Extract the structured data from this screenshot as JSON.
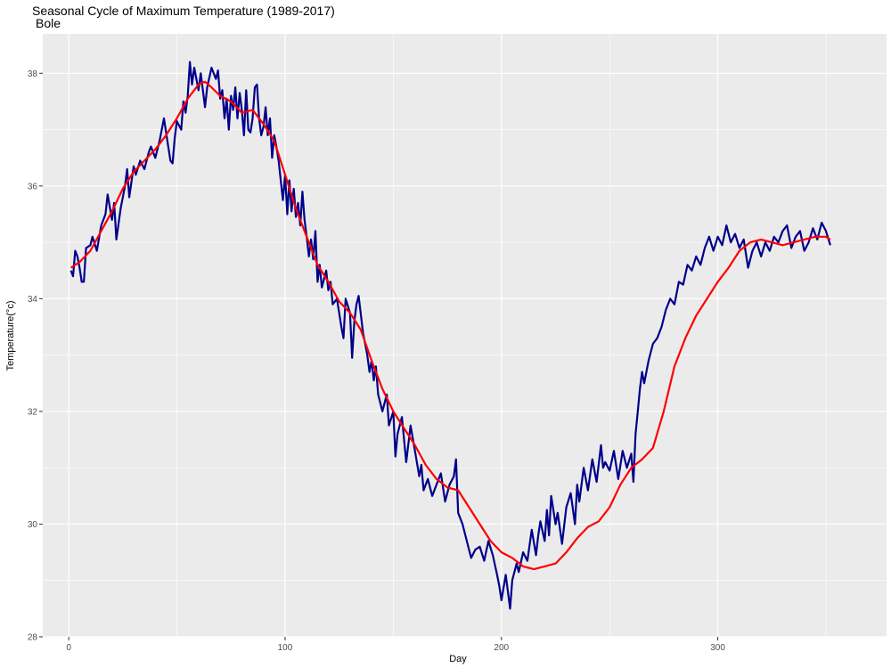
{
  "chart_data": {
    "type": "line",
    "title": "Seasonal Cycle of Maximum Temperature (1989-2017)",
    "subtitle": "Bole",
    "xlabel": "Day",
    "ylabel": "Temperature(°c)",
    "xlim": [
      -12,
      378
    ],
    "ylim": [
      28,
      38.7
    ],
    "x_ticks": [
      0,
      100,
      200,
      300
    ],
    "y_ticks": [
      28,
      30,
      32,
      34,
      36,
      38
    ],
    "grid": true,
    "legend": "none",
    "colors": {
      "panel_bg": "#ebebeb",
      "grid": "#ffffff",
      "observed": "#00008b",
      "smooth": "#ff0000"
    },
    "series": [
      {
        "values_anchor": [
          [
            1,
            34.5
          ],
          [
            2,
            34.4
          ],
          [
            3,
            34.85
          ],
          [
            4,
            34.75
          ],
          [
            5,
            34.55
          ],
          [
            6,
            34.3
          ],
          [
            7,
            34.3
          ],
          [
            8,
            34.9
          ],
          [
            10,
            34.95
          ],
          [
            11,
            35.1
          ],
          [
            13,
            34.85
          ],
          [
            15,
            35.3
          ],
          [
            17,
            35.5
          ],
          [
            18,
            35.85
          ],
          [
            20,
            35.4
          ],
          [
            21,
            35.7
          ],
          [
            22,
            35.05
          ],
          [
            24,
            35.6
          ],
          [
            26,
            36.0
          ],
          [
            27,
            36.3
          ],
          [
            28,
            35.8
          ],
          [
            30,
            36.35
          ],
          [
            31,
            36.2
          ],
          [
            33,
            36.45
          ],
          [
            35,
            36.3
          ],
          [
            37,
            36.6
          ],
          [
            38,
            36.7
          ],
          [
            40,
            36.5
          ],
          [
            42,
            36.8
          ],
          [
            44,
            37.2
          ],
          [
            46,
            36.7
          ],
          [
            47,
            36.45
          ],
          [
            48,
            36.4
          ],
          [
            49,
            36.85
          ],
          [
            50,
            37.15
          ],
          [
            52,
            37.0
          ],
          [
            53,
            37.5
          ],
          [
            54,
            37.3
          ],
          [
            55,
            37.6
          ],
          [
            56,
            38.2
          ],
          [
            57,
            37.8
          ],
          [
            58,
            38.1
          ],
          [
            60,
            37.7
          ],
          [
            61,
            38.0
          ],
          [
            63,
            37.4
          ],
          [
            64,
            37.75
          ],
          [
            66,
            38.1
          ],
          [
            68,
            37.9
          ],
          [
            69,
            38.05
          ],
          [
            70,
            37.55
          ],
          [
            71,
            37.7
          ],
          [
            72,
            37.2
          ],
          [
            73,
            37.55
          ],
          [
            74,
            37.0
          ],
          [
            75,
            37.6
          ],
          [
            76,
            37.35
          ],
          [
            77,
            37.75
          ],
          [
            78,
            37.2
          ],
          [
            79,
            37.65
          ],
          [
            80,
            37.35
          ],
          [
            81,
            36.9
          ],
          [
            82,
            37.7
          ],
          [
            83,
            37.0
          ],
          [
            84,
            36.95
          ],
          [
            85,
            37.2
          ],
          [
            86,
            37.75
          ],
          [
            87,
            37.8
          ],
          [
            88,
            37.2
          ],
          [
            89,
            36.9
          ],
          [
            90,
            37.05
          ],
          [
            91,
            37.4
          ],
          [
            92,
            36.9
          ],
          [
            93,
            37.2
          ],
          [
            94,
            36.5
          ],
          [
            95,
            36.9
          ],
          [
            96,
            36.7
          ],
          [
            97,
            36.45
          ],
          [
            99,
            35.75
          ],
          [
            100,
            36.2
          ],
          [
            101,
            35.5
          ],
          [
            102,
            36.1
          ],
          [
            103,
            35.55
          ],
          [
            104,
            35.95
          ],
          [
            105,
            35.45
          ],
          [
            106,
            35.7
          ],
          [
            107,
            35.3
          ],
          [
            108,
            35.9
          ],
          [
            109,
            35.4
          ],
          [
            110,
            35.1
          ],
          [
            111,
            34.75
          ],
          [
            112,
            35.05
          ],
          [
            113,
            34.7
          ],
          [
            114,
            35.2
          ],
          [
            115,
            34.3
          ],
          [
            116,
            34.6
          ],
          [
            117,
            34.2
          ],
          [
            118,
            34.35
          ],
          [
            119,
            34.5
          ],
          [
            120,
            34.15
          ],
          [
            121,
            34.3
          ],
          [
            122,
            33.9
          ],
          [
            124,
            34.0
          ],
          [
            126,
            33.5
          ],
          [
            127,
            33.3
          ],
          [
            128,
            34.0
          ],
          [
            130,
            33.75
          ],
          [
            131,
            32.95
          ],
          [
            132,
            33.6
          ],
          [
            133,
            33.9
          ],
          [
            134,
            34.05
          ],
          [
            136,
            33.4
          ],
          [
            138,
            33.0
          ],
          [
            139,
            32.7
          ],
          [
            140,
            32.9
          ],
          [
            141,
            32.55
          ],
          [
            142,
            32.8
          ],
          [
            143,
            32.3
          ],
          [
            145,
            32.0
          ],
          [
            147,
            32.3
          ],
          [
            148,
            31.75
          ],
          [
            150,
            32.0
          ],
          [
            151,
            31.2
          ],
          [
            152,
            31.6
          ],
          [
            154,
            31.9
          ],
          [
            156,
            31.1
          ],
          [
            158,
            31.75
          ],
          [
            160,
            31.3
          ],
          [
            162,
            30.85
          ],
          [
            163,
            31.05
          ],
          [
            164,
            30.6
          ],
          [
            166,
            30.8
          ],
          [
            168,
            30.5
          ],
          [
            170,
            30.7
          ],
          [
            172,
            30.9
          ],
          [
            174,
            30.4
          ],
          [
            176,
            30.7
          ],
          [
            178,
            30.85
          ],
          [
            179,
            31.15
          ],
          [
            180,
            30.2
          ],
          [
            182,
            30.0
          ],
          [
            184,
            29.7
          ],
          [
            186,
            29.4
          ],
          [
            188,
            29.55
          ],
          [
            190,
            29.6
          ],
          [
            192,
            29.35
          ],
          [
            194,
            29.7
          ],
          [
            196,
            29.45
          ],
          [
            198,
            29.1
          ],
          [
            199,
            28.9
          ],
          [
            200,
            28.65
          ],
          [
            202,
            29.1
          ],
          [
            204,
            28.5
          ],
          [
            205,
            29.0
          ],
          [
            207,
            29.3
          ],
          [
            208,
            29.15
          ],
          [
            210,
            29.5
          ],
          [
            212,
            29.35
          ],
          [
            214,
            29.9
          ],
          [
            216,
            29.45
          ],
          [
            217,
            29.8
          ],
          [
            218,
            30.05
          ],
          [
            220,
            29.7
          ],
          [
            221,
            30.25
          ],
          [
            222,
            29.8
          ],
          [
            223,
            30.5
          ],
          [
            225,
            30.0
          ],
          [
            226,
            30.2
          ],
          [
            228,
            29.65
          ],
          [
            230,
            30.3
          ],
          [
            232,
            30.55
          ],
          [
            234,
            30.0
          ],
          [
            235,
            30.7
          ],
          [
            236,
            30.4
          ],
          [
            238,
            31.0
          ],
          [
            240,
            30.6
          ],
          [
            242,
            31.15
          ],
          [
            244,
            30.75
          ],
          [
            246,
            31.4
          ],
          [
            247,
            31.0
          ],
          [
            248,
            31.1
          ],
          [
            250,
            30.95
          ],
          [
            252,
            31.3
          ],
          [
            254,
            30.8
          ],
          [
            256,
            31.3
          ],
          [
            258,
            31.0
          ],
          [
            260,
            31.25
          ],
          [
            261,
            30.75
          ],
          [
            262,
            31.6
          ],
          [
            263,
            32.0
          ],
          [
            264,
            32.4
          ],
          [
            265,
            32.7
          ],
          [
            266,
            32.5
          ],
          [
            268,
            32.9
          ],
          [
            270,
            33.2
          ],
          [
            272,
            33.3
          ],
          [
            274,
            33.5
          ],
          [
            276,
            33.8
          ],
          [
            278,
            34.0
          ],
          [
            280,
            33.9
          ],
          [
            282,
            34.3
          ],
          [
            284,
            34.25
          ],
          [
            286,
            34.6
          ],
          [
            288,
            34.5
          ],
          [
            290,
            34.75
          ],
          [
            292,
            34.6
          ],
          [
            294,
            34.9
          ],
          [
            296,
            35.1
          ],
          [
            298,
            34.85
          ],
          [
            300,
            35.1
          ],
          [
            302,
            34.95
          ],
          [
            304,
            35.3
          ],
          [
            306,
            35.0
          ],
          [
            308,
            35.15
          ],
          [
            310,
            34.9
          ],
          [
            312,
            35.05
          ],
          [
            314,
            34.55
          ],
          [
            316,
            34.85
          ],
          [
            318,
            35.0
          ],
          [
            320,
            34.75
          ],
          [
            322,
            35.0
          ],
          [
            324,
            34.85
          ],
          [
            326,
            35.1
          ],
          [
            328,
            35.0
          ],
          [
            330,
            35.2
          ],
          [
            332,
            35.3
          ],
          [
            334,
            34.9
          ],
          [
            336,
            35.1
          ],
          [
            338,
            35.2
          ],
          [
            340,
            34.85
          ],
          [
            342,
            35.0
          ],
          [
            344,
            35.25
          ],
          [
            346,
            35.05
          ],
          [
            348,
            35.35
          ],
          [
            350,
            35.2
          ],
          [
            352,
            34.95
          ]
        ]
      },
      {
        "values_anchor": [
          [
            1,
            34.55
          ],
          [
            5,
            34.65
          ],
          [
            10,
            34.85
          ],
          [
            15,
            35.2
          ],
          [
            20,
            35.55
          ],
          [
            25,
            35.95
          ],
          [
            30,
            36.25
          ],
          [
            35,
            36.45
          ],
          [
            40,
            36.65
          ],
          [
            45,
            36.9
          ],
          [
            50,
            37.2
          ],
          [
            55,
            37.55
          ],
          [
            60,
            37.8
          ],
          [
            63,
            37.85
          ],
          [
            66,
            37.75
          ],
          [
            70,
            37.6
          ],
          [
            75,
            37.5
          ],
          [
            80,
            37.3
          ],
          [
            85,
            37.35
          ],
          [
            90,
            37.1
          ],
          [
            95,
            36.8
          ],
          [
            100,
            36.2
          ],
          [
            105,
            35.6
          ],
          [
            110,
            35.1
          ],
          [
            115,
            34.6
          ],
          [
            120,
            34.3
          ],
          [
            125,
            33.95
          ],
          [
            130,
            33.75
          ],
          [
            135,
            33.45
          ],
          [
            140,
            32.9
          ],
          [
            145,
            32.4
          ],
          [
            150,
            32.0
          ],
          [
            155,
            31.7
          ],
          [
            160,
            31.4
          ],
          [
            165,
            31.05
          ],
          [
            170,
            30.8
          ],
          [
            175,
            30.65
          ],
          [
            180,
            30.6
          ],
          [
            185,
            30.3
          ],
          [
            190,
            30.0
          ],
          [
            195,
            29.7
          ],
          [
            200,
            29.5
          ],
          [
            205,
            29.4
          ],
          [
            210,
            29.25
          ],
          [
            215,
            29.2
          ],
          [
            220,
            29.25
          ],
          [
            225,
            29.3
          ],
          [
            230,
            29.5
          ],
          [
            235,
            29.75
          ],
          [
            240,
            29.95
          ],
          [
            245,
            30.05
          ],
          [
            250,
            30.3
          ],
          [
            255,
            30.7
          ],
          [
            260,
            31.0
          ],
          [
            265,
            31.15
          ],
          [
            270,
            31.35
          ],
          [
            275,
            32.0
          ],
          [
            280,
            32.8
          ],
          [
            285,
            33.3
          ],
          [
            290,
            33.7
          ],
          [
            295,
            34.0
          ],
          [
            300,
            34.3
          ],
          [
            305,
            34.55
          ],
          [
            310,
            34.85
          ],
          [
            315,
            35.0
          ],
          [
            320,
            35.05
          ],
          [
            325,
            35.0
          ],
          [
            330,
            34.95
          ],
          [
            335,
            35.0
          ],
          [
            340,
            35.05
          ],
          [
            345,
            35.1
          ],
          [
            350,
            35.1
          ],
          [
            352,
            35.05
          ]
        ]
      }
    ]
  }
}
